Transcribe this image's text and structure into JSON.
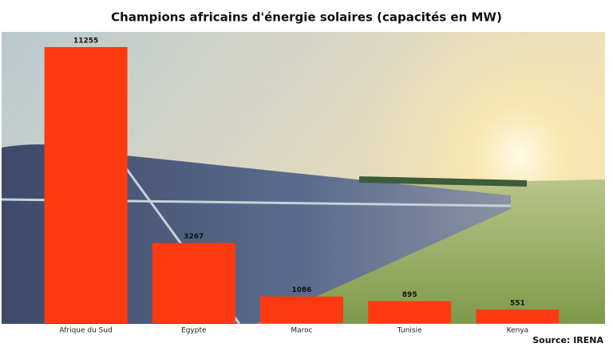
{
  "chart_data": {
    "type": "bar",
    "title": "Champions africains d'énergie solaires (capacités en MW)",
    "categories": [
      "Afrique du Sud",
      "Egypte",
      "Maroc",
      "Tunisie",
      "Kenya"
    ],
    "values": [
      11255,
      3267,
      1086,
      895,
      551
    ],
    "color": "#ff3a10",
    "source": "Source: IRENA"
  }
}
